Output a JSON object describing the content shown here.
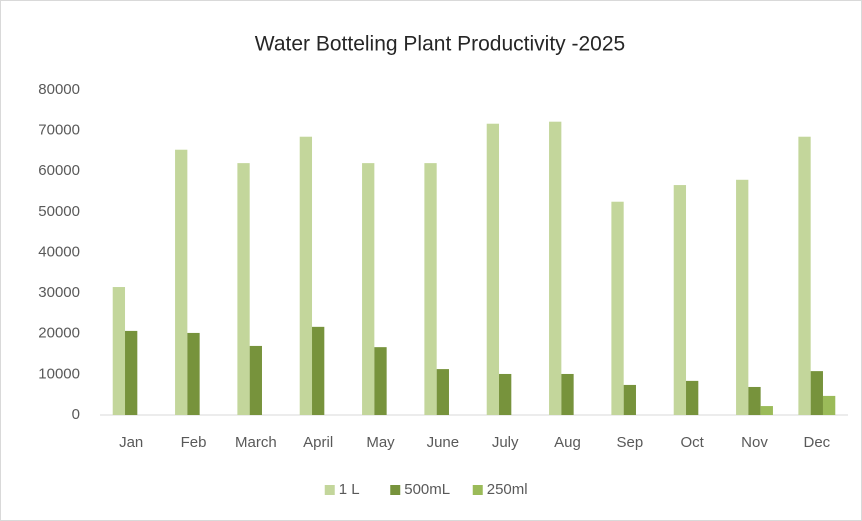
{
  "chart_data": {
    "type": "bar",
    "title": "Water Botteling Plant Productivity -2025",
    "categories": [
      "Jan",
      "Feb",
      "March",
      "April",
      "May",
      "June",
      "July",
      "Aug",
      "Sep",
      "Oct",
      "Nov",
      "Dec"
    ],
    "series": [
      {
        "name": "1 L",
        "color": "#c3d69b",
        "values": [
          31500,
          65300,
          62000,
          68500,
          62000,
          62000,
          71700,
          72200,
          52500,
          56600,
          57900,
          68500
        ]
      },
      {
        "name": "500mL",
        "color": "#77933c",
        "values": [
          20700,
          20200,
          17000,
          21700,
          16700,
          11300,
          10100,
          10100,
          7400,
          8400,
          6900,
          10800
        ]
      },
      {
        "name": "250ml",
        "color": "#9bbb59",
        "values": [
          0,
          0,
          0,
          0,
          0,
          0,
          0,
          0,
          0,
          0,
          2200,
          4700
        ]
      }
    ],
    "ylim": [
      0,
      80000
    ],
    "yticks": [
      0,
      10000,
      20000,
      30000,
      40000,
      50000,
      60000,
      70000,
      80000
    ],
    "grid": false,
    "legend": "bottom"
  }
}
